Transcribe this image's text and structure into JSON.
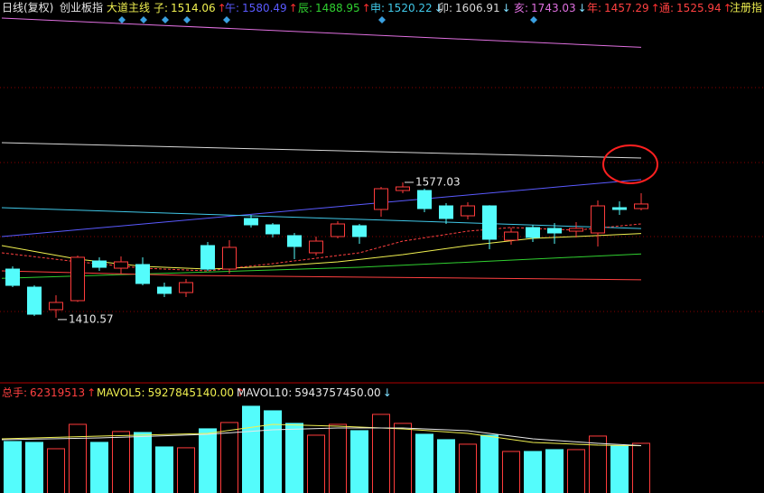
{
  "chart_data": {
    "type": "candlestick",
    "period": "日线(复权)",
    "title": "创业板指",
    "indicator": "大道主线",
    "extra_indicator": "注册指",
    "up_color": "#ff3c3c",
    "down_color": "#54fcfc",
    "ylim": [
      1335,
      1781.2
    ],
    "candles": [
      {
        "open": 1470.4,
        "high": 1473.8,
        "low": 1448.2,
        "close": 1450.4
      },
      {
        "open": 1448.2,
        "high": 1450.4,
        "low": 1412.7,
        "close": 1414.9
      },
      {
        "open": 1420.5,
        "high": 1438.2,
        "low": 1410.57,
        "close": 1429.4
      },
      {
        "open": 1431.6,
        "high": 1487.1,
        "low": 1430,
        "close": 1484.9
      },
      {
        "open": 1480.4,
        "high": 1484.9,
        "low": 1468.2,
        "close": 1472.6
      },
      {
        "open": 1471.5,
        "high": 1486,
        "low": 1464.9,
        "close": 1479.3
      },
      {
        "open": 1476,
        "high": 1484.9,
        "low": 1450.4,
        "close": 1452.7
      },
      {
        "open": 1448.2,
        "high": 1453.8,
        "low": 1436,
        "close": 1440.5
      },
      {
        "open": 1441.6,
        "high": 1458.2,
        "low": 1436,
        "close": 1453.8
      },
      {
        "open": 1499.3,
        "high": 1503.7,
        "low": 1468.2,
        "close": 1470.4
      },
      {
        "open": 1470.4,
        "high": 1505.9,
        "low": 1464.9,
        "close": 1497.1
      },
      {
        "open": 1532.6,
        "high": 1537,
        "low": 1521.5,
        "close": 1524.8
      },
      {
        "open": 1524.8,
        "high": 1527,
        "low": 1509.3,
        "close": 1513.7
      },
      {
        "open": 1511.5,
        "high": 1514.8,
        "low": 1482.6,
        "close": 1498.2
      },
      {
        "open": 1490.4,
        "high": 1510.4,
        "low": 1487.1,
        "close": 1504.8
      },
      {
        "open": 1510.4,
        "high": 1529.3,
        "low": 1508.2,
        "close": 1525.9
      },
      {
        "open": 1523.7,
        "high": 1525.9,
        "low": 1501.5,
        "close": 1510.4
      },
      {
        "open": 1543.7,
        "high": 1571.4,
        "low": 1534.8,
        "close": 1569.2
      },
      {
        "open": 1567,
        "high": 1577.03,
        "low": 1563.7,
        "close": 1571.4
      },
      {
        "open": 1567,
        "high": 1569.2,
        "low": 1540.4,
        "close": 1544.8
      },
      {
        "open": 1548.1,
        "high": 1551.5,
        "low": 1525.9,
        "close": 1532.6
      },
      {
        "open": 1535.9,
        "high": 1552.6,
        "low": 1531.5,
        "close": 1548.1
      },
      {
        "open": 1548.1,
        "high": 1549,
        "low": 1494.8,
        "close": 1507.1
      },
      {
        "open": 1505.9,
        "high": 1521.5,
        "low": 1500.4,
        "close": 1515.9
      },
      {
        "open": 1521.5,
        "high": 1524.8,
        "low": 1503.7,
        "close": 1509.3
      },
      {
        "open": 1520.4,
        "high": 1527,
        "low": 1501.5,
        "close": 1514.8
      },
      {
        "open": 1517,
        "high": 1528.1,
        "low": 1509.3,
        "close": 1520.4
      },
      {
        "open": 1514.8,
        "high": 1554.8,
        "low": 1498.2,
        "close": 1548.1
      },
      {
        "open": 1545.9,
        "high": 1553.7,
        "low": 1537,
        "close": 1543.7
      },
      {
        "open": 1544.8,
        "high": 1563.7,
        "low": 1542.6,
        "close": 1550.4
      }
    ],
    "series": [
      {
        "name": "子:",
        "color": "#f0f050",
        "arrow": "↑",
        "x": [
          -0.5,
          3,
          6,
          9,
          12,
          15,
          18,
          21,
          24,
          26,
          29
        ],
        "values": [
          1499.3,
          1482.6,
          1473.7,
          1470.4,
          1473.7,
          1479.3,
          1488.2,
          1499.3,
          1508.2,
          1510.4,
          1514.06
        ]
      },
      {
        "name": "午:",
        "color": "#5a5aff",
        "arrow": "↑",
        "x": [
          -0.5,
          29
        ],
        "values": [
          1510.4,
          1580.49
        ]
      },
      {
        "name": "辰:",
        "color": "#30d030",
        "arrow": "↑",
        "x": [
          -0.5,
          8,
          16,
          29
        ],
        "values": [
          1459,
          1466,
          1472.6,
          1488.95
        ]
      },
      {
        "name": "申:",
        "color": "#40c8e8",
        "arrow": "↓",
        "x": [
          -0.5,
          29
        ],
        "values": [
          1545.9,
          1520.22
        ]
      },
      {
        "name": "卯:",
        "color": "#d8d8d8",
        "arrow": "↓",
        "x": [
          -0.5,
          29
        ],
        "values": [
          1625.8,
          1606.91
        ]
      },
      {
        "name": "亥:",
        "color": "#e070e0",
        "arrow": "↓",
        "x": [
          -0.5,
          29
        ],
        "values": [
          1779,
          1743.03
        ]
      },
      {
        "name": "年:",
        "color": "#ff4040",
        "arrow": "↑",
        "x": [
          -0.5,
          8,
          29
        ],
        "values": [
          1468.2,
          1462.6,
          1457.29
        ]
      },
      {
        "name": "通:",
        "color": "#ff4040",
        "arrow": "↑",
        "dashed": true,
        "x": [
          -0.5,
          3,
          6,
          9,
          12,
          16,
          18,
          21,
          23,
          26,
          29
        ],
        "values": [
          1490.4,
          1479.3,
          1471.5,
          1468.2,
          1477.1,
          1490.4,
          1504.8,
          1517,
          1521.5,
          1518.2,
          1525.94
        ]
      }
    ],
    "volume": {
      "name": "总手:",
      "color": "#ff4040",
      "arrow": "↑",
      "ylim": [
        0,
        137000000
      ],
      "y2lim": [
        0,
        13700000000
      ],
      "values": [
        64600000,
        63500000,
        55500000,
        86100000,
        63500000,
        77100000,
        75900000,
        57800000,
        56700000,
        80500000,
        88400000,
        108800000,
        103100000,
        87300000,
        72500000,
        86100000,
        78200000,
        98600000,
        87300000,
        73700000,
        66900000,
        61200000,
        72500000,
        52100000,
        52100000,
        54400000,
        54400000,
        71400000,
        58900000,
        62319513
      ],
      "series": [
        {
          "name": "MAVOL5:",
          "color": "#f0f050",
          "arrow": "↑",
          "axis": "y2",
          "x": [
            -0.5,
            4,
            9,
            12,
            15,
            18,
            21,
            24,
            27,
            29
          ],
          "values": [
            6793000000,
            7133000000,
            7473000000,
            8605000000,
            8378000000,
            8039000000,
            7473000000,
            6340000000,
            6001000000,
            5927845140
          ],
          "last_label": "5927845140.00"
        },
        {
          "name": "MAVOL10:",
          "color": "#e8e8e8",
          "arrow": "↓",
          "axis": "y2",
          "x": [
            -0.5,
            4,
            9,
            12,
            15,
            18,
            21,
            24,
            27,
            29
          ],
          "values": [
            6680000000,
            6906000000,
            7359000000,
            7925000000,
            8152000000,
            8152000000,
            7812000000,
            6793000000,
            6227000000,
            5943757450
          ],
          "last_label": "5943757450.00"
        }
      ]
    }
  }
}
